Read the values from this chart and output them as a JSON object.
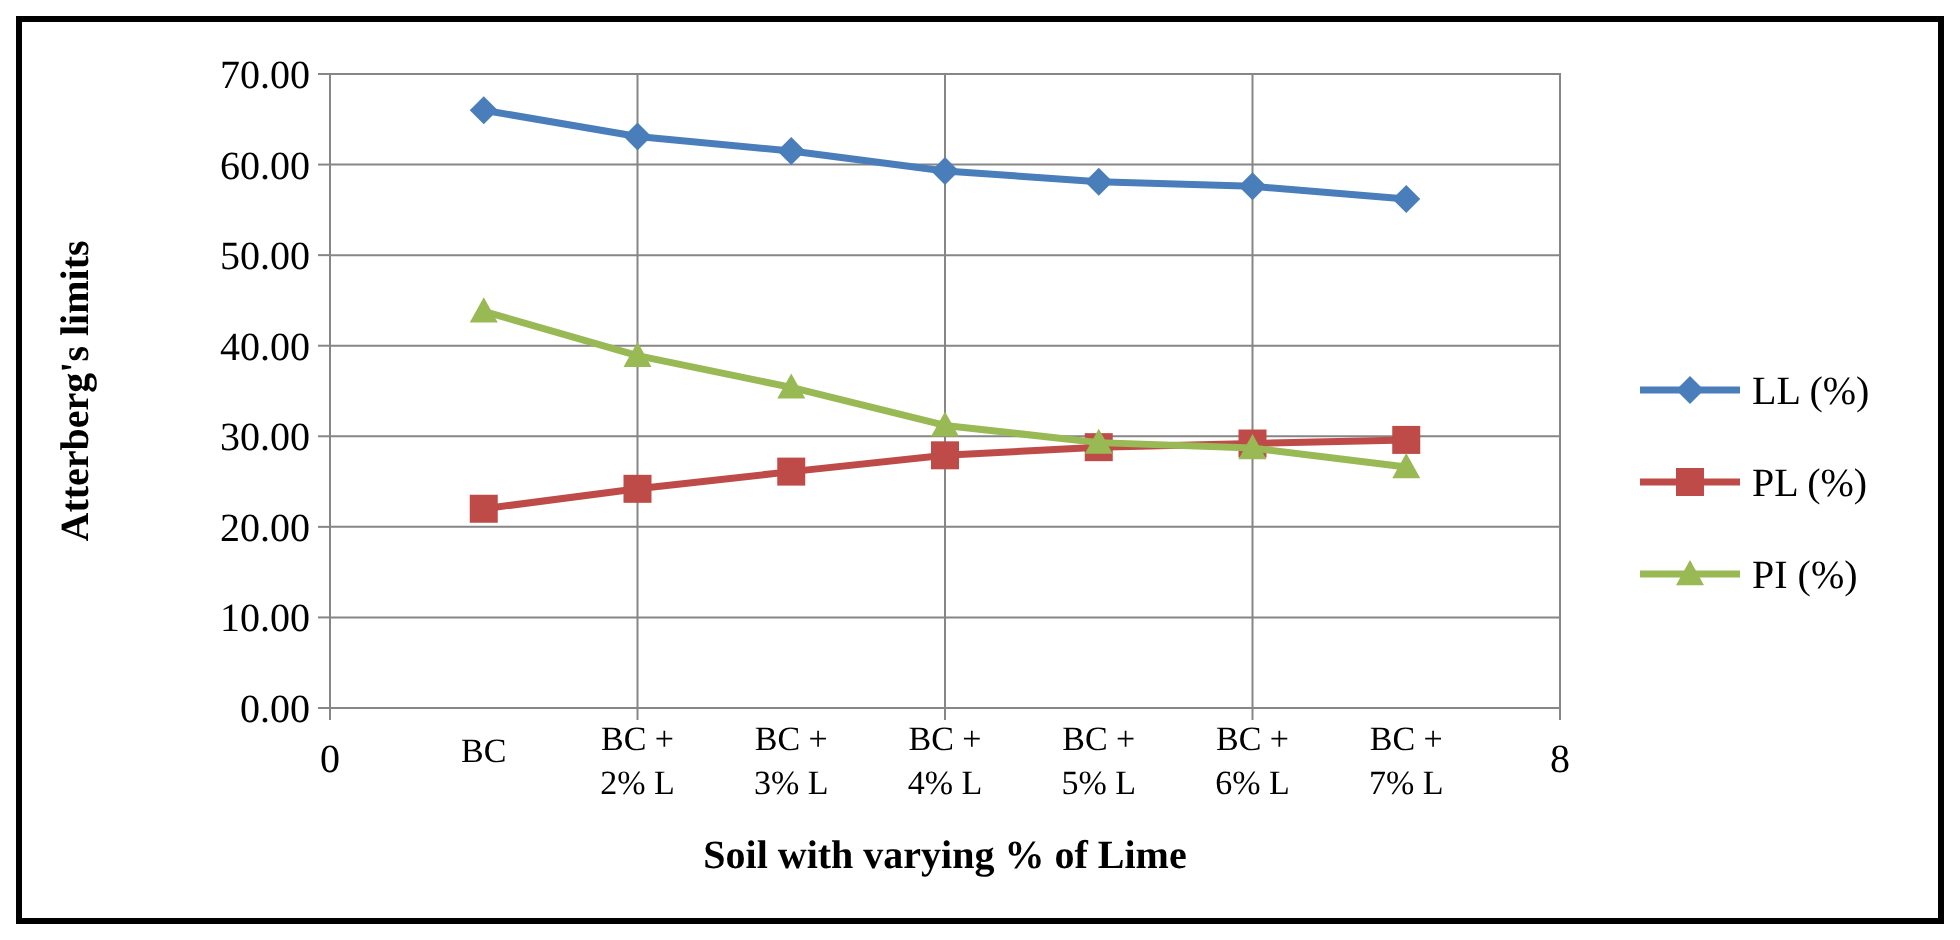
{
  "chart_data": {
    "type": "line",
    "xlabel": "Soil with varying % of Lime",
    "ylabel": "Atterberg's limits",
    "x": [
      1,
      2,
      3,
      4,
      5,
      6,
      7
    ],
    "series": [
      {
        "name": "LL (%)",
        "color": "#4a7ebb",
        "marker": "diamond",
        "values": [
          66.0,
          63.1,
          61.5,
          59.3,
          58.1,
          57.6,
          56.2
        ]
      },
      {
        "name": "PL (%)",
        "color": "#be4b48",
        "marker": "square",
        "values": [
          22.0,
          24.2,
          26.1,
          27.9,
          28.8,
          29.2,
          29.6
        ]
      },
      {
        "name": "PI (%)",
        "color": "#98b954",
        "marker": "triangle",
        "values": [
          43.8,
          38.9,
          35.4,
          31.2,
          29.3,
          28.7,
          26.6
        ]
      }
    ],
    "xlim": [
      0,
      8
    ],
    "xticks": [
      0,
      {
        "value": 2,
        "label": null
      },
      {
        "value": 4,
        "label": null
      },
      {
        "value": 6,
        "label": null
      },
      8
    ],
    "ylim": [
      0,
      70
    ],
    "yticks": [
      {
        "value": 0,
        "label": "0.00"
      },
      {
        "value": 10,
        "label": "10.00"
      },
      {
        "value": 20,
        "label": "20.00"
      },
      {
        "value": 30,
        "label": "30.00"
      },
      {
        "value": 40,
        "label": "40.00"
      },
      {
        "value": 50,
        "label": "50.00"
      },
      {
        "value": 60,
        "label": "60.00"
      },
      {
        "value": 70,
        "label": "70.00"
      }
    ],
    "annotations": [
      "BC",
      "BC + 2% L",
      "BC + 3% L",
      "BC + 4% L",
      "BC + 5% L",
      "BC + 6% L",
      "BC + 7% L"
    ],
    "grid": true,
    "legend": "right",
    "line_style": "solid"
  }
}
